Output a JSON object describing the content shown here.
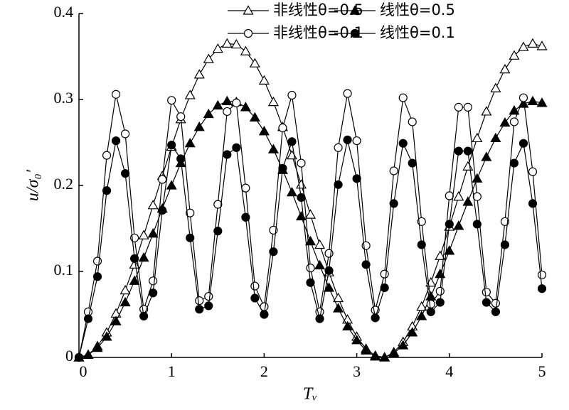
{
  "chart_data": {
    "type": "line",
    "x": [
      0,
      0.1,
      0.2,
      0.3,
      0.4,
      0.5,
      0.6,
      0.7,
      0.8,
      0.9,
      1,
      1.1,
      1.2,
      1.3,
      1.4,
      1.5,
      1.6,
      1.7,
      1.8,
      1.9,
      2,
      2.1,
      2.2,
      2.3,
      2.4,
      2.5,
      2.6,
      2.7,
      2.8,
      2.9,
      3,
      3.1,
      3.2,
      3.3,
      3.4,
      3.5,
      3.6,
      3.7,
      3.8,
      3.9,
      4,
      4.1,
      4.2,
      4.3,
      4.4,
      4.5,
      4.6,
      4.7,
      4.8,
      4.9,
      5
    ],
    "series": [
      {
        "name": "非线性θ=0.5",
        "color": "#000000",
        "marker": "triangle",
        "filled": false,
        "values": [
          0,
          0.003,
          0.013,
          0.029,
          0.051,
          0.078,
          0.108,
          0.142,
          0.177,
          0.211,
          0.245,
          0.277,
          0.305,
          0.329,
          0.347,
          0.359,
          0.365,
          0.364,
          0.356,
          0.342,
          0.322,
          0.297,
          0.268,
          0.235,
          0.201,
          0.166,
          0.131,
          0.099,
          0.069,
          0.044,
          0.024,
          0.01,
          0.002,
          0.0,
          0.006,
          0.018,
          0.036,
          0.059,
          0.087,
          0.118,
          0.152,
          0.187,
          0.222,
          0.255,
          0.286,
          0.313,
          0.335,
          0.351,
          0.361,
          0.365,
          0.362
        ]
      },
      {
        "name": "线性θ=0.5",
        "color": "#000000",
        "marker": "triangle",
        "filled": true,
        "values": [
          0,
          0.003,
          0.011,
          0.024,
          0.042,
          0.064,
          0.089,
          0.116,
          0.144,
          0.173,
          0.2,
          0.226,
          0.249,
          0.268,
          0.283,
          0.293,
          0.298,
          0.297,
          0.291,
          0.279,
          0.263,
          0.242,
          0.218,
          0.192,
          0.164,
          0.135,
          0.107,
          0.081,
          0.057,
          0.036,
          0.02,
          0.008,
          0.001,
          0.0,
          0.005,
          0.014,
          0.029,
          0.048,
          0.071,
          0.097,
          0.124,
          0.153,
          0.181,
          0.208,
          0.233,
          0.255,
          0.273,
          0.287,
          0.295,
          0.298,
          0.296
        ]
      },
      {
        "name": "非线性θ=0.1",
        "color": "#000000",
        "marker": "circle",
        "filled": false,
        "values": [
          0,
          0.053,
          0.112,
          0.235,
          0.306,
          0.26,
          0.139,
          0.056,
          0.089,
          0.207,
          0.299,
          0.28,
          0.168,
          0.066,
          0.071,
          0.178,
          0.286,
          0.296,
          0.197,
          0.083,
          0.059,
          0.148,
          0.267,
          0.305,
          0.226,
          0.104,
          0.053,
          0.121,
          0.244,
          0.307,
          0.252,
          0.13,
          0.055,
          0.097,
          0.217,
          0.302,
          0.274,
          0.158,
          0.062,
          0.077,
          0.188,
          0.291,
          0.291,
          0.187,
          0.076,
          0.063,
          0.158,
          0.274,
          0.302,
          0.216,
          0.096
        ]
      },
      {
        "name": "线性θ=0.1",
        "color": "#000000",
        "marker": "circle",
        "filled": true,
        "values": [
          0,
          0.045,
          0.094,
          0.194,
          0.252,
          0.214,
          0.115,
          0.048,
          0.075,
          0.171,
          0.247,
          0.231,
          0.139,
          0.056,
          0.06,
          0.147,
          0.236,
          0.244,
          0.163,
          0.069,
          0.05,
          0.123,
          0.22,
          0.251,
          0.186,
          0.087,
          0.045,
          0.101,
          0.201,
          0.253,
          0.208,
          0.108,
          0.046,
          0.081,
          0.179,
          0.249,
          0.226,
          0.131,
          0.053,
          0.064,
          0.155,
          0.24,
          0.24,
          0.155,
          0.064,
          0.053,
          0.131,
          0.226,
          0.249,
          0.179,
          0.08
        ]
      }
    ],
    "xlabel": "Tᵥ",
    "ylabel": "u/σ₀′",
    "xlim": [
      0,
      5
    ],
    "xticks": [
      0,
      1,
      2,
      3,
      4,
      5
    ],
    "ylim": [
      0,
      0.4
    ],
    "yticks": [
      0,
      0.1,
      0.2,
      0.3,
      0.4
    ],
    "grid": false,
    "legend": "top"
  }
}
